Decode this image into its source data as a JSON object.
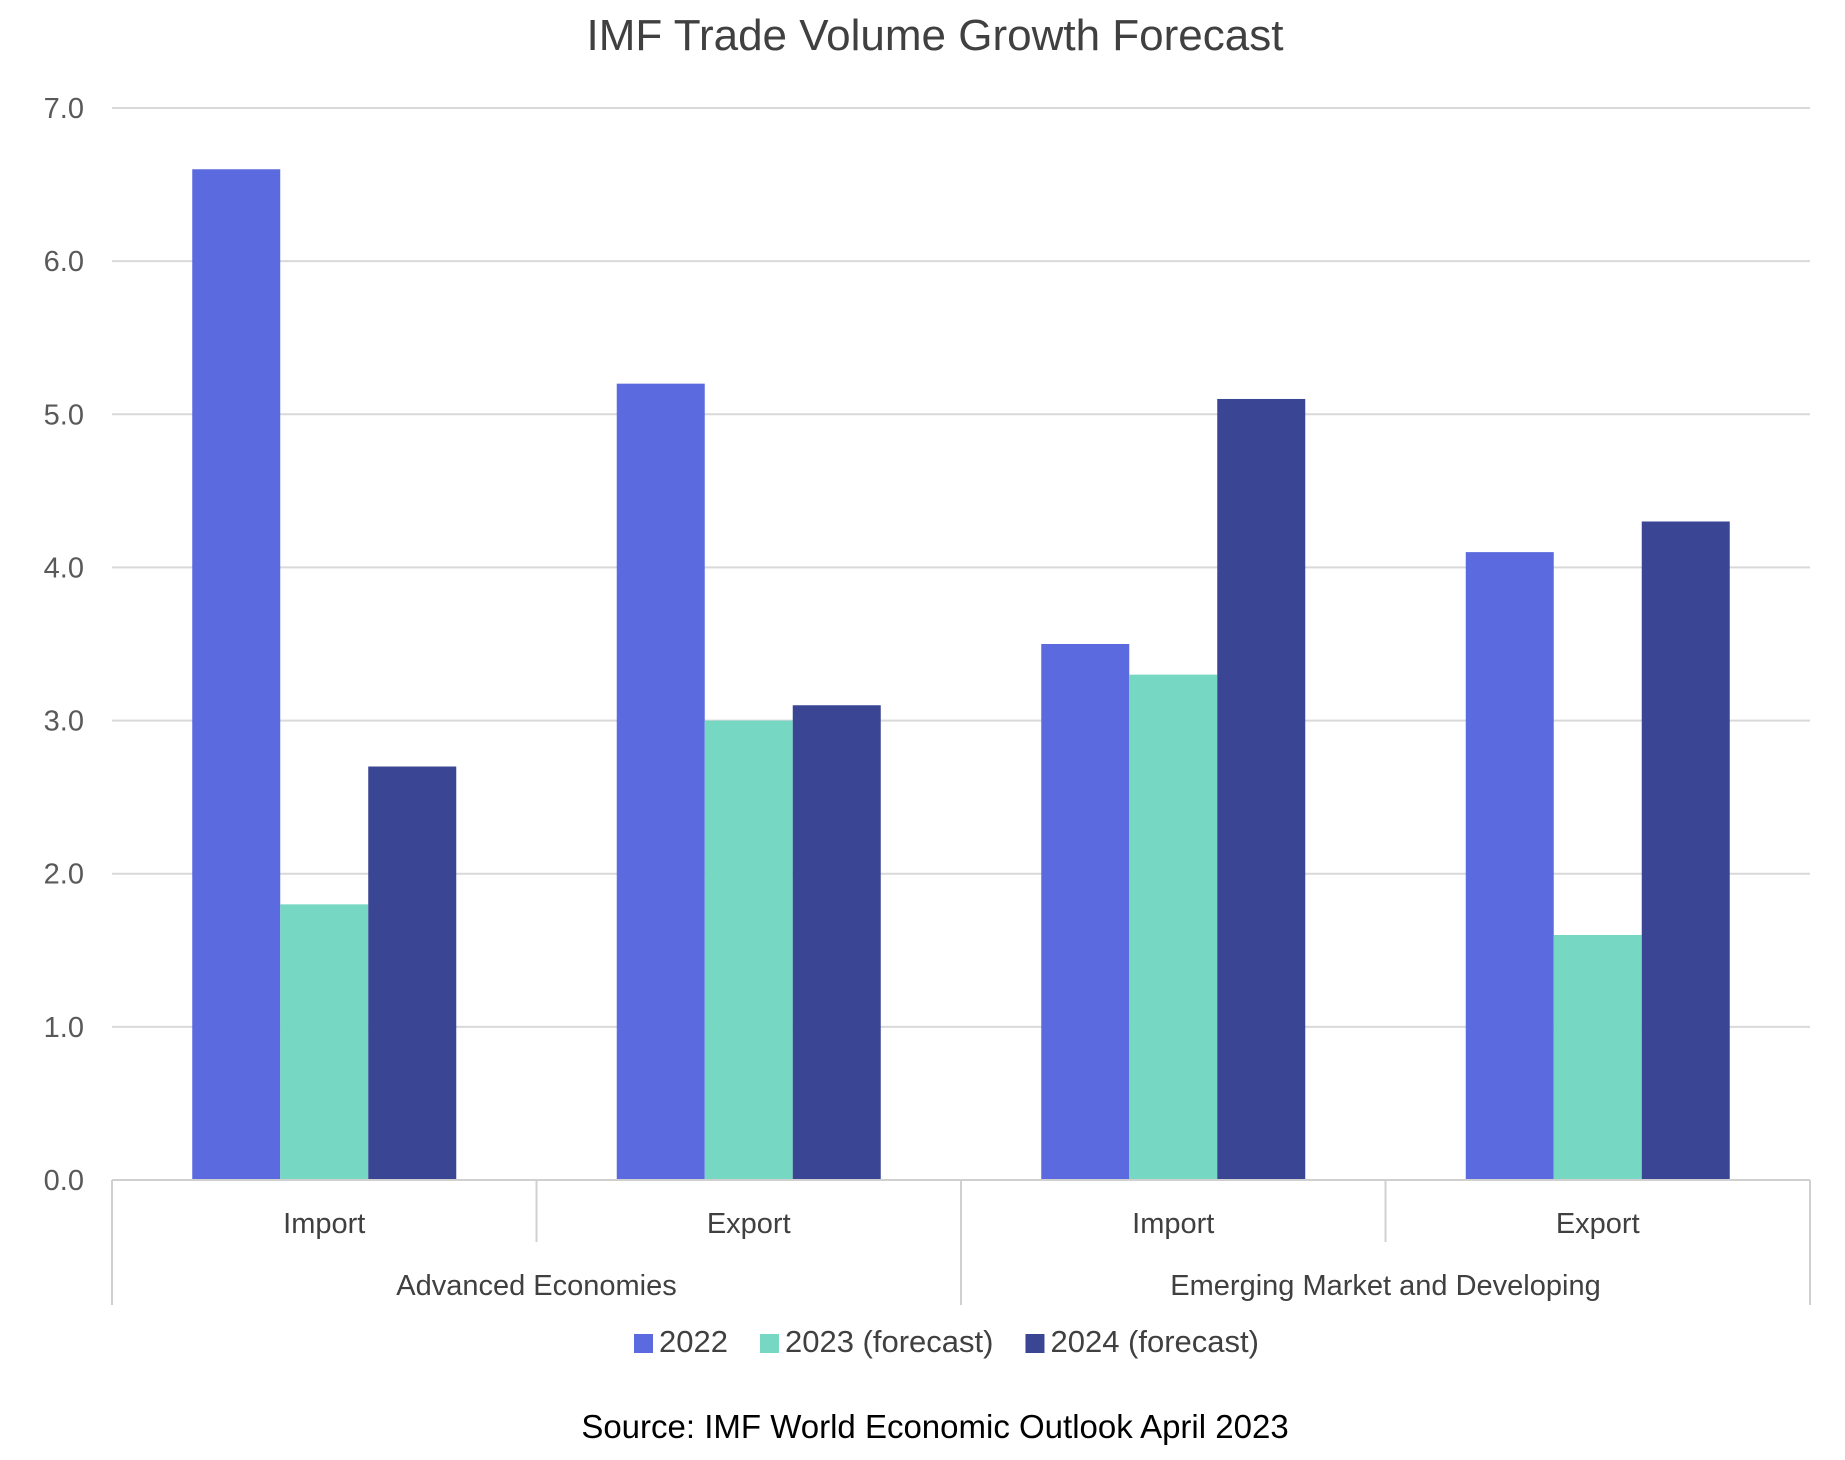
{
  "chart_data": {
    "type": "bar",
    "title": "IMF Trade Volume Growth Forecast",
    "source": "Source: IMF World Economic Outlook April 2023",
    "xlabel": "",
    "ylabel": "",
    "ylim": [
      0,
      7
    ],
    "yticks": [
      "0.0",
      "1.0",
      "2.0",
      "3.0",
      "4.0",
      "5.0",
      "6.0",
      "7.0"
    ],
    "grid": true,
    "legend_position": "bottom",
    "groups": [
      "Advanced Economies",
      "Emerging Market and Developing"
    ],
    "categories": [
      "Import",
      "Export",
      "Import",
      "Export"
    ],
    "series": [
      {
        "name": "2022",
        "color": "#5b6bdf",
        "values": [
          6.6,
          5.2,
          3.5,
          4.1
        ]
      },
      {
        "name": "2023 (forecast)",
        "color": "#76d8c2",
        "values": [
          1.8,
          3.0,
          3.3,
          1.6
        ]
      },
      {
        "name": "2024 (forecast)",
        "color": "#3a4594",
        "values": [
          2.7,
          3.1,
          5.1,
          4.3
        ]
      }
    ]
  }
}
